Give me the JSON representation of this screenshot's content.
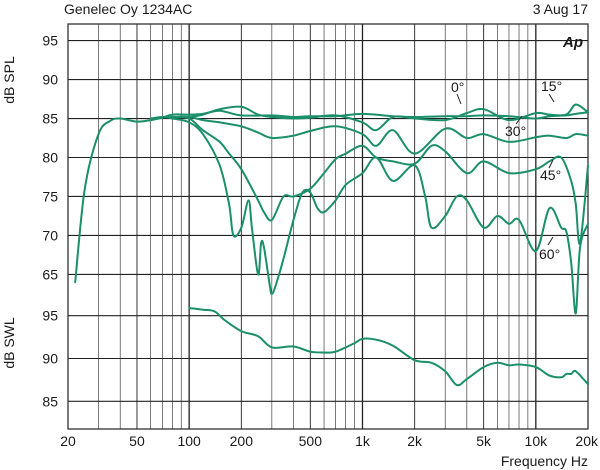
{
  "header": {
    "left": "Genelec Oy 1234AC",
    "right": "3  Aug 17",
    "logo": "Ap"
  },
  "colors": {
    "curve": "#1b8f6a",
    "grid": "#222222",
    "background": "#ffffff"
  },
  "chart_data": [
    {
      "type": "line",
      "title": "",
      "ylabel": "dB SPL",
      "xlabel": "",
      "x_scale": "log",
      "xlim": [
        20,
        20000
      ],
      "ylim": [
        63,
        97
      ],
      "yticks": [
        65,
        70,
        75,
        80,
        85,
        90,
        95
      ],
      "grid": true,
      "series": [
        {
          "name": "0°",
          "x": [
            22,
            25,
            30,
            35,
            40,
            50,
            60,
            70,
            80,
            100,
            120,
            150,
            200,
            300,
            400,
            500,
            700,
            1000,
            1500,
            2000,
            3000,
            4000,
            5000,
            7000,
            10000,
            12000,
            15000,
            17000,
            20000
          ],
          "y": [
            64,
            76,
            83,
            84.7,
            85,
            84.6,
            84.8,
            85.1,
            85.5,
            85.5,
            85.6,
            86,
            85.4,
            85.4,
            85.2,
            85.3,
            85.3,
            85.6,
            85.3,
            85.2,
            85.3,
            85.3,
            85.4,
            85.3,
            85,
            85.3,
            85.4,
            85.6,
            85.8
          ]
        },
        {
          "name": "15°",
          "x": [
            100,
            120,
            150,
            200,
            250,
            300,
            400,
            500,
            700,
            1000,
            1200,
            1500,
            2000,
            3000,
            4000,
            5000,
            7000,
            10000,
            12000,
            15000,
            17000,
            20000
          ],
          "y": [
            85.2,
            85.5,
            86.2,
            86.5,
            85.5,
            85.2,
            85,
            85.1,
            85.4,
            84.5,
            83.5,
            85.2,
            85,
            84.8,
            85.7,
            86.2,
            84.8,
            85.7,
            85.5,
            85.5,
            86.8,
            85.8
          ]
        },
        {
          "name": "30°",
          "x": [
            80,
            100,
            120,
            150,
            200,
            250,
            300,
            400,
            500,
            700,
            1000,
            1200,
            1500,
            2000,
            3000,
            4000,
            5000,
            7000,
            10000,
            12000,
            15000,
            17000,
            20000
          ],
          "y": [
            85.2,
            85.2,
            84.8,
            84.5,
            84,
            83.2,
            82.5,
            82.8,
            83.4,
            84,
            83,
            81.5,
            83.5,
            80.5,
            83.7,
            82.5,
            83,
            82,
            82.6,
            82.8,
            82.5,
            83,
            82.8
          ]
        },
        {
          "name": "45°",
          "x": [
            70,
            80,
            100,
            120,
            150,
            170,
            200,
            250,
            270,
            300,
            350,
            400,
            500,
            600,
            700,
            800,
            1000,
            1200,
            1500,
            2000,
            2500,
            3000,
            4000,
            5000,
            7000,
            10000,
            12000,
            14000,
            16000,
            17000,
            18000,
            20000
          ],
          "y": [
            85.2,
            85.2,
            85,
            83.5,
            82,
            80.5,
            78.5,
            74.5,
            73,
            72,
            75,
            75,
            76,
            78,
            79.8,
            80.5,
            81.5,
            80,
            79.5,
            79.2,
            81.5,
            80.8,
            78,
            79.5,
            78,
            78.5,
            79.5,
            80,
            77,
            74,
            69,
            79
          ]
        },
        {
          "name": "60°",
          "x": [
            60,
            70,
            80,
            100,
            120,
            150,
            170,
            180,
            200,
            220,
            230,
            250,
            260,
            270,
            290,
            300,
            320,
            350,
            400,
            450,
            500,
            550,
            600,
            700,
            800,
            1000,
            1200,
            1500,
            2000,
            2300,
            2500,
            3000,
            3500,
            4000,
            5000,
            6000,
            7000,
            8000,
            10000,
            12000,
            14000,
            15000,
            16000,
            17000,
            18000,
            20000
          ],
          "y": [
            85,
            85.2,
            85,
            84.5,
            83,
            79,
            74,
            70,
            71,
            74.5,
            71,
            65,
            69,
            68.5,
            64,
            62.5,
            64,
            67,
            72,
            75.5,
            75.5,
            73.5,
            73,
            74.5,
            76.5,
            78,
            80,
            77,
            79,
            75,
            71,
            72.5,
            75,
            74.5,
            71,
            72.5,
            71.5,
            72,
            68,
            73.5,
            71,
            70.5,
            66.5,
            60,
            68.5,
            71.5
          ]
        }
      ],
      "annotations": [
        "0°",
        "15°",
        "30°",
        "45°",
        "60°"
      ]
    },
    {
      "type": "line",
      "title": "",
      "ylabel": "dB SWL",
      "xlabel": "Frequency Hz",
      "x_scale": "log",
      "xlim": [
        20,
        20000
      ],
      "ylim": [
        82,
        98
      ],
      "yticks": [
        85,
        90,
        95
      ],
      "xticks": [
        "20",
        "50",
        "100",
        "200",
        "500",
        "1k",
        "2k",
        "5k",
        "10k",
        "20k"
      ],
      "grid": true,
      "series": [
        {
          "name": "",
          "x": [
            100,
            120,
            140,
            160,
            200,
            250,
            300,
            400,
            500,
            600,
            700,
            900,
            1000,
            1200,
            1500,
            2000,
            2500,
            3000,
            3500,
            4000,
            5000,
            6000,
            7000,
            8000,
            10000,
            12000,
            14000,
            15000,
            16000,
            17000,
            20000
          ],
          "y": [
            95.9,
            95.7,
            95.5,
            94.5,
            93.2,
            92.6,
            91.3,
            91.4,
            90.8,
            90.7,
            90.8,
            91.8,
            92.3,
            92.2,
            91.5,
            89.8,
            89.5,
            88.5,
            86.9,
            87.6,
            89,
            89.5,
            89.2,
            89.3,
            89,
            88,
            87.8,
            88.2,
            88.2,
            88.5,
            87
          ]
        }
      ]
    }
  ]
}
